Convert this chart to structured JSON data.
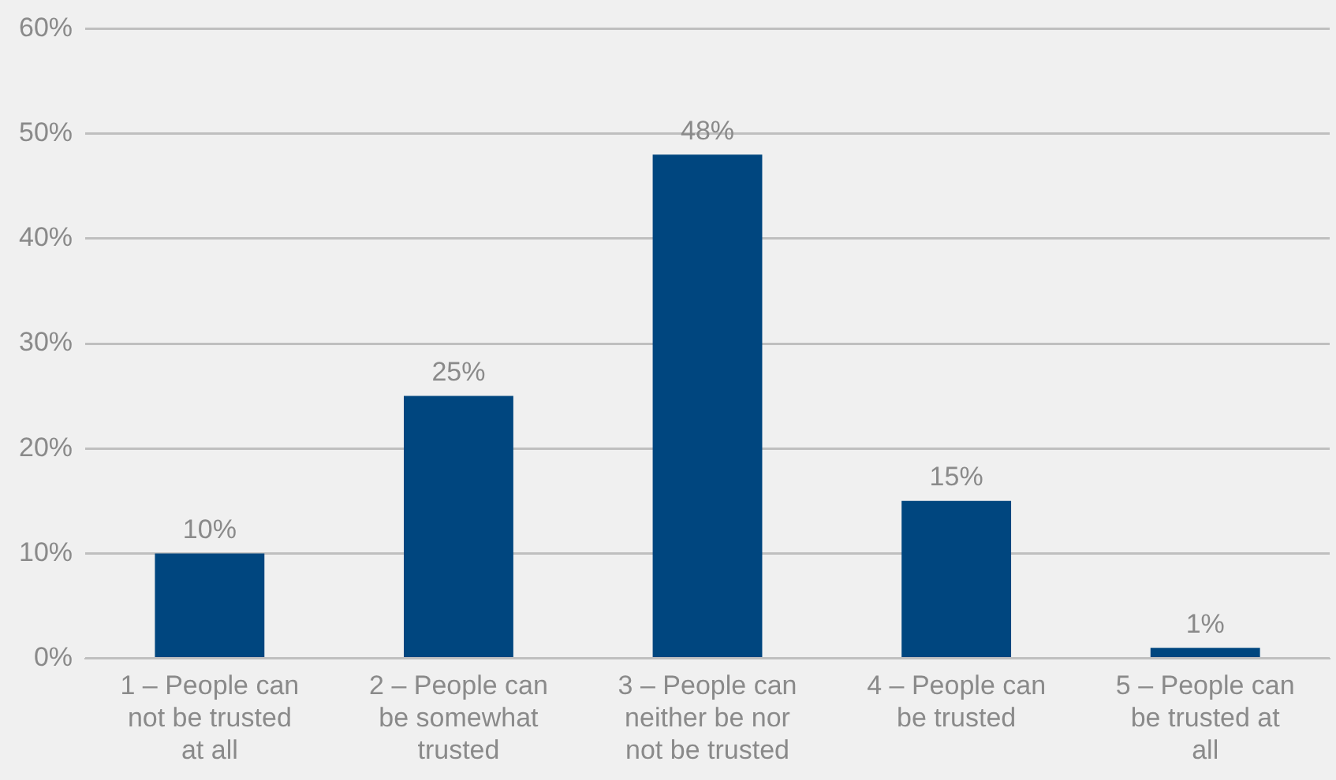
{
  "chart_data": {
    "type": "bar",
    "categories": [
      "1 – People can not be trusted at all",
      "2 – People can be somewhat trusted",
      "3 – People can neither be nor not be trusted",
      "4 – People can be trusted",
      "5 – People can be trusted at all"
    ],
    "values": [
      10,
      25,
      48,
      15,
      1
    ],
    "value_labels": [
      "10%",
      "25%",
      "48%",
      "15%",
      "1%"
    ],
    "color": "#00467f",
    "ylim": [
      0,
      60
    ],
    "yticks": [
      {
        "value": 0,
        "label": "0%"
      },
      {
        "value": 10,
        "label": "10%"
      },
      {
        "value": 20,
        "label": "20%"
      },
      {
        "value": 30,
        "label": "30%"
      },
      {
        "value": 40,
        "label": "40%"
      },
      {
        "value": 50,
        "label": "50%"
      },
      {
        "value": 60,
        "label": "60%"
      }
    ],
    "grid": "y",
    "legend": false
  }
}
